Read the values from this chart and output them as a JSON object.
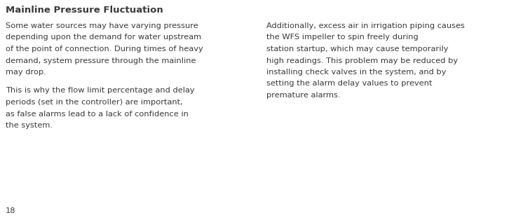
{
  "title": "Mainline Pressure Fluctuation",
  "page_number": "18",
  "bg_color": "#ffffff",
  "text_color": "#3a3a3a",
  "title_fontsize": 9.5,
  "body_fontsize": 8.2,
  "page_num_fontsize": 8.2,
  "para1": "Some water sources may have varying pressure depending upon the demand for water upstream of the point of connection. During times of heavy demand, system pressure through the mainline may drop.",
  "para2": "This is why the flow limit percentage and delay periods (set in the controller) are important, as false alarms lead to a lack of confidence in the system.",
  "para3": "Additionally, excess air in irrigation piping causes the WFS impeller to spin freely during station startup, which may cause temporarily high readings. This problem may be reduced by installing check valves in the system, and by setting the alarm delay values to prevent premature alarms.",
  "col1_lines_p1": [
    "Some water sources may have varying pressure",
    "depending upon the demand for water upstream",
    "of the point of connection. During times of heavy",
    "demand, system pressure through the mainline",
    "may drop."
  ],
  "col1_lines_p2": [
    "This is why the flow limit percentage and delay",
    "periods (set in the controller) are important,",
    "as false alarms lead to a lack of confidence in",
    "the system."
  ],
  "col2_lines_p3": [
    "Additionally, excess air in irrigation piping causes",
    "the WFS impeller to spin freely during",
    "station startup, which may cause temporarily",
    "high readings. This problem may be reduced by",
    "installing check valves in the system, and by",
    "setting the alarm delay values to prevent",
    "premature alarms."
  ]
}
